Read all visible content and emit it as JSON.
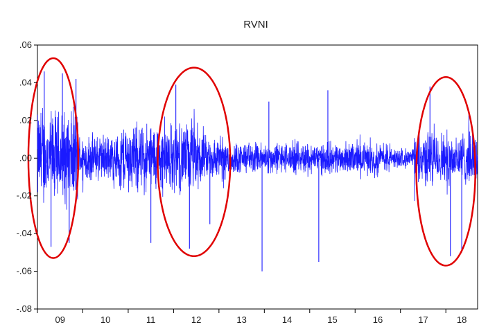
{
  "chart_data": {
    "type": "line",
    "title": "RVNI",
    "xlabel": "",
    "ylabel": "",
    "x_ticks": [
      "09",
      "10",
      "11",
      "12",
      "13",
      "14",
      "15",
      "16",
      "17",
      "18"
    ],
    "x_range": [
      2009,
      2018.7
    ],
    "y_ticks": [
      ".06",
      ".04",
      ".02",
      ".00",
      "-.02",
      "-.04",
      "-.06",
      "-.08"
    ],
    "y_tick_values": [
      0.06,
      0.04,
      0.02,
      0.0,
      -0.02,
      -0.04,
      -0.06,
      -0.08
    ],
    "ylim": [
      -0.08,
      0.06
    ],
    "grid": false,
    "series": [
      {
        "color": "#1a1aff",
        "volatility_profile": [
          {
            "x": [
              2009.0,
              2009.9
            ],
            "amplitude": 0.03
          },
          {
            "x": [
              2009.9,
              2010.8
            ],
            "amplitude": 0.015
          },
          {
            "x": [
              2010.8,
              2012.6
            ],
            "amplitude": 0.022
          },
          {
            "x": [
              2012.6,
              2013.3
            ],
            "amplitude": 0.014
          },
          {
            "x": [
              2013.3,
              2016.8
            ],
            "amplitude": 0.01
          },
          {
            "x": [
              2016.8,
              2017.3
            ],
            "amplitude": 0.006
          },
          {
            "x": [
              2017.3,
              2018.7
            ],
            "amplitude": 0.017
          }
        ],
        "spikes": [
          {
            "x": 2009.15,
            "y": 0.046
          },
          {
            "x": 2009.3,
            "y": -0.047
          },
          {
            "x": 2009.55,
            "y": 0.045
          },
          {
            "x": 2009.7,
            "y": -0.045
          },
          {
            "x": 2009.85,
            "y": 0.042
          },
          {
            "x": 2011.5,
            "y": -0.045
          },
          {
            "x": 2012.05,
            "y": 0.039
          },
          {
            "x": 2012.35,
            "y": -0.048
          },
          {
            "x": 2012.8,
            "y": -0.035
          },
          {
            "x": 2013.95,
            "y": -0.06
          },
          {
            "x": 2014.1,
            "y": 0.03
          },
          {
            "x": 2015.2,
            "y": -0.055
          },
          {
            "x": 2015.4,
            "y": 0.036
          },
          {
            "x": 2017.65,
            "y": 0.038
          },
          {
            "x": 2018.1,
            "y": -0.052
          },
          {
            "x": 2018.35,
            "y": -0.05
          }
        ]
      }
    ],
    "annotations": [
      {
        "type": "ellipse",
        "color": "#e00000",
        "x_center": 2009.35,
        "y_center": 0.0,
        "x_radius": 0.55,
        "y_radius": 0.053
      },
      {
        "type": "ellipse",
        "color": "#e00000",
        "x_center": 2012.45,
        "y_center": -0.002,
        "x_radius": 0.8,
        "y_radius": 0.05
      },
      {
        "type": "ellipse",
        "color": "#e00000",
        "x_center": 2018.0,
        "y_center": -0.007,
        "x_radius": 0.65,
        "y_radius": 0.05
      }
    ]
  }
}
